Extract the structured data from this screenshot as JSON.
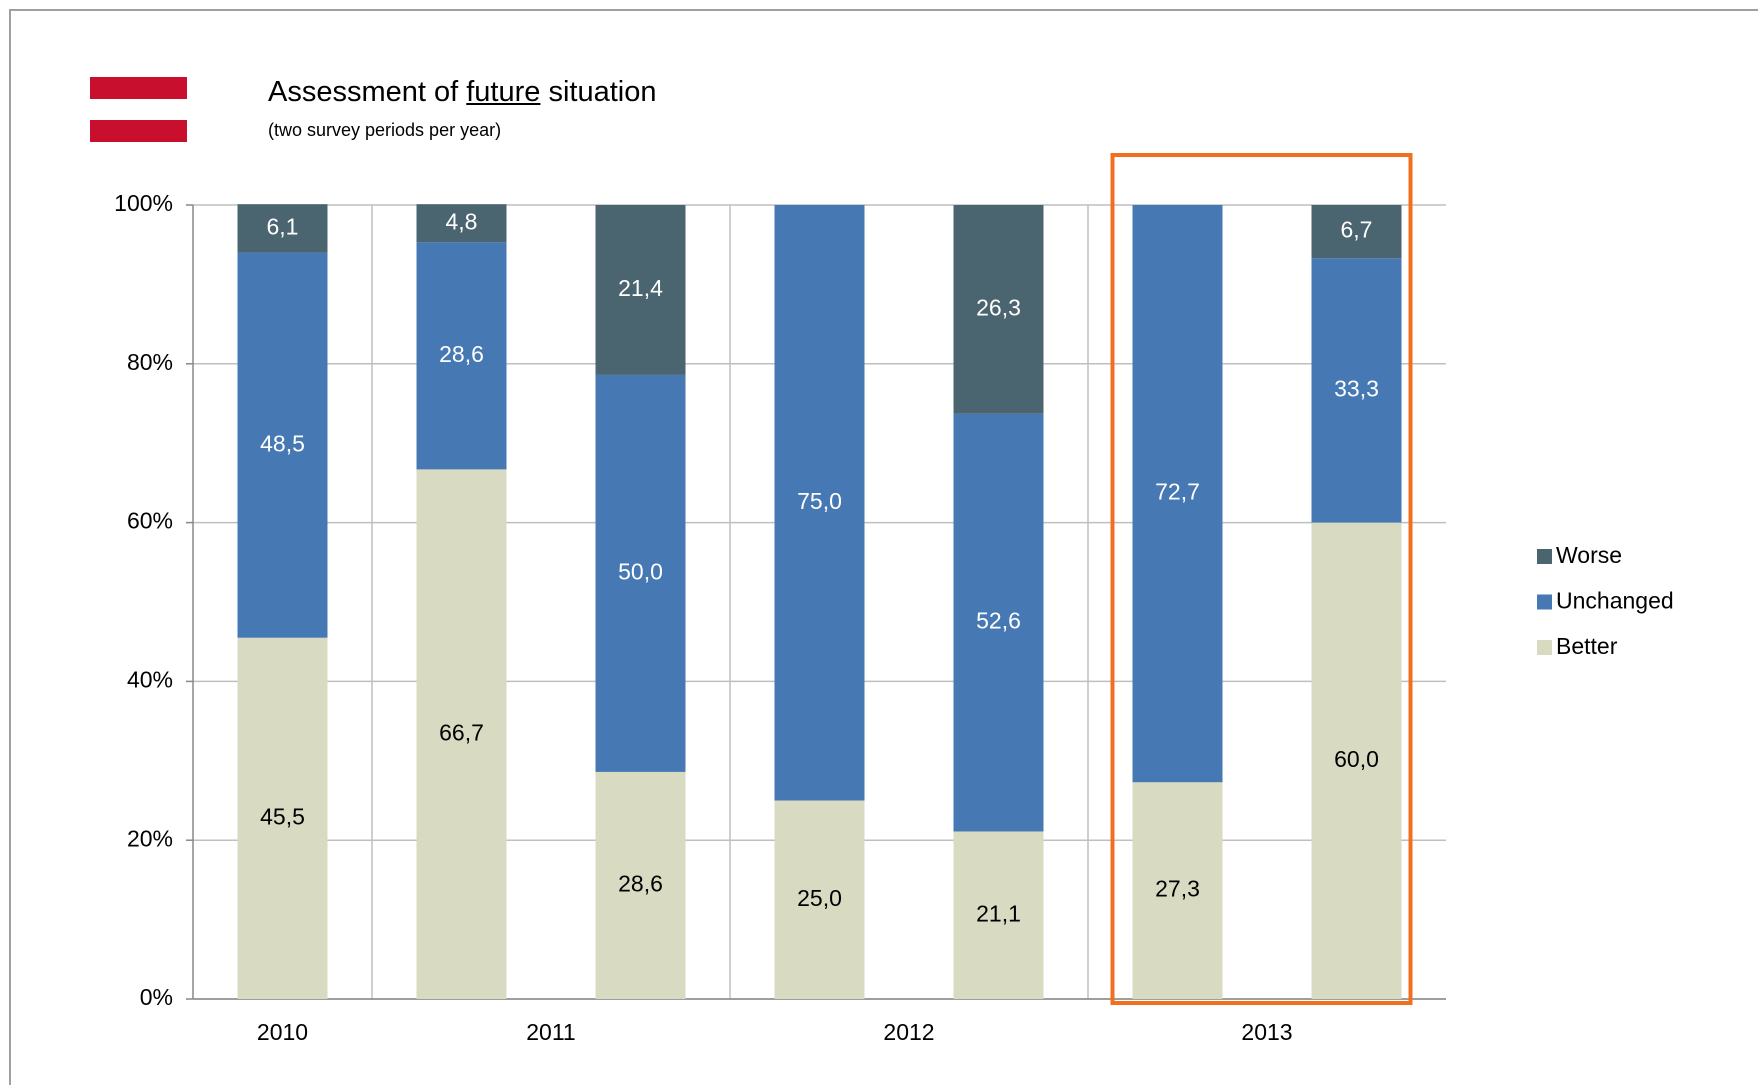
{
  "chart_data": {
    "type": "stacked_bar",
    "title": [
      "Assessment of ",
      "future",
      " situation"
    ],
    "subtitle": "(two survey periods per year)",
    "categories": [
      "2010",
      "2011",
      "2011",
      "2012",
      "2012",
      "2013",
      "2013"
    ],
    "series": [
      {
        "name": "Worse",
        "color": "#4b6570",
        "label_color": "#ffffff",
        "values": [
          6.1,
          4.8,
          21.4,
          null,
          26.3,
          null,
          6.7
        ],
        "value_labels": [
          "6,1",
          "4,8",
          "21,4",
          null,
          "26,3",
          null,
          "6,7"
        ]
      },
      {
        "name": "Unchanged",
        "color": "#4678b4",
        "label_color": "#ffffff",
        "values": [
          48.5,
          28.6,
          50.0,
          75.0,
          52.6,
          72.7,
          33.3
        ],
        "value_labels": [
          "48,5",
          "28,6",
          "50,0",
          "75,0",
          "52,6",
          "72,7",
          "33,3"
        ]
      },
      {
        "name": "Better",
        "color": "#d8dac2",
        "label_color": "#000000",
        "values": [
          45.5,
          66.7,
          28.6,
          25.0,
          21.1,
          27.3,
          60.0
        ],
        "value_labels": [
          "45,5",
          "66,7",
          "28,6",
          "25,0",
          "21,1",
          "27,3",
          "60,0"
        ]
      }
    ],
    "ylim": [
      0,
      100
    ],
    "yticks": [
      {
        "value": 0,
        "label": "0%"
      },
      {
        "value": 20,
        "label": "20%"
      },
      {
        "value": 40,
        "label": "40%"
      },
      {
        "value": 60,
        "label": "60%"
      },
      {
        "value": 80,
        "label": "80%"
      },
      {
        "value": 100,
        "label": "100%"
      }
    ],
    "grid": true,
    "legend": "right",
    "highlight": "2013",
    "highlight_color": "#f07020"
  }
}
